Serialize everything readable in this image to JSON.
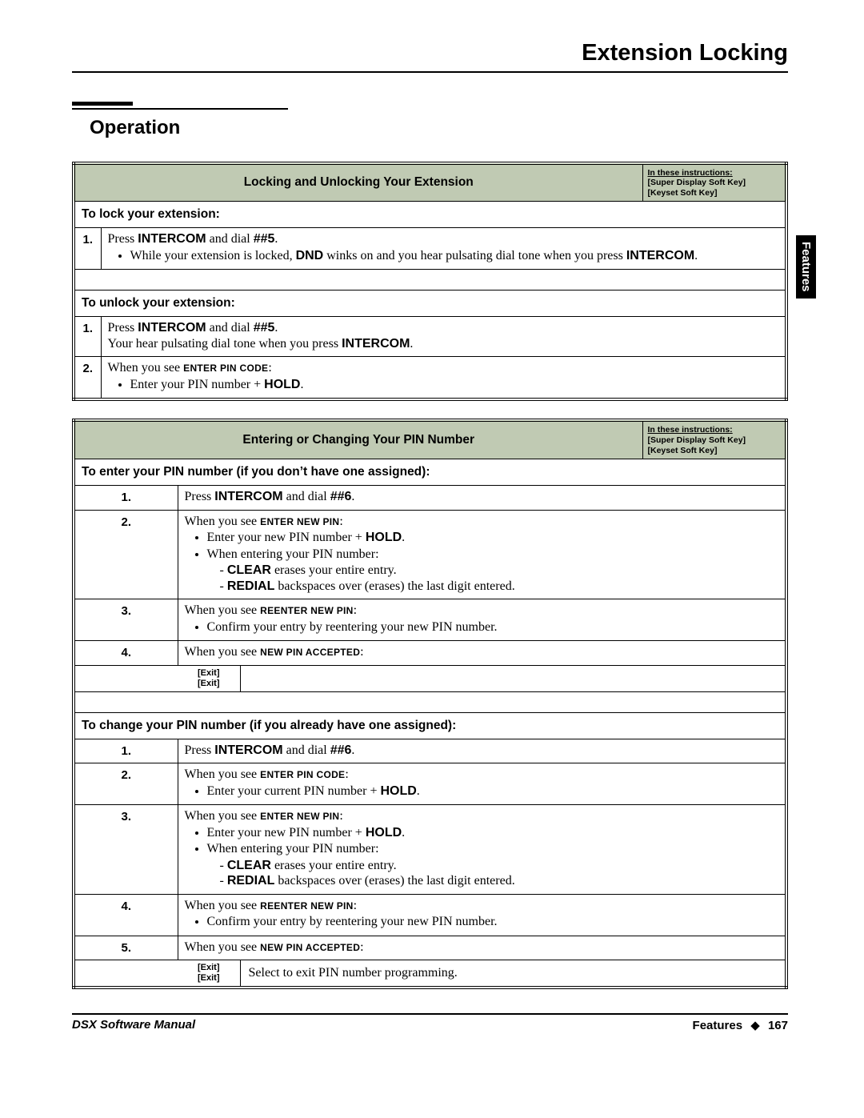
{
  "page_title": "Extension Locking",
  "section_heading": "Operation",
  "side_tab": "Features",
  "colors": {
    "header_bg": "#c0cab3",
    "rule": "#000000",
    "text": "#000000"
  },
  "legend": {
    "line1": "In these instructions:",
    "line2": "[Super Display Soft Key]",
    "line3": "[Keyset Soft Key]"
  },
  "tables": [
    {
      "title": "Locking and Unlocking Your Extension",
      "blocks": [
        {
          "subhead": "To lock your extension:",
          "rows": [
            {
              "num": "1.",
              "lines": [
                {
                  "type": "line",
                  "segments": [
                    {
                      "t": "Press ",
                      "cls": "serif"
                    },
                    {
                      "t": "INTERCOM",
                      "cls": "sans-b"
                    },
                    {
                      "t": " and dial ",
                      "cls": "serif"
                    },
                    {
                      "t": "##5",
                      "cls": "sans-b"
                    },
                    {
                      "t": ".",
                      "cls": "serif"
                    }
                  ]
                },
                {
                  "type": "bullet",
                  "segments": [
                    {
                      "t": "While your extension is locked, ",
                      "cls": "serif"
                    },
                    {
                      "t": "DND",
                      "cls": "sans-b"
                    },
                    {
                      "t": " winks on and you hear pulsating dial tone when you press ",
                      "cls": "serif"
                    },
                    {
                      "t": "INTERCOM",
                      "cls": "sans-b"
                    },
                    {
                      "t": ".",
                      "cls": "serif"
                    }
                  ]
                }
              ]
            }
          ],
          "spacer_after": true
        },
        {
          "subhead": "To unlock your extension:",
          "rows": [
            {
              "num": "1.",
              "lines": [
                {
                  "type": "line",
                  "segments": [
                    {
                      "t": "Press ",
                      "cls": "serif"
                    },
                    {
                      "t": "INTERCOM",
                      "cls": "sans-b"
                    },
                    {
                      "t": " and dial ",
                      "cls": "serif"
                    },
                    {
                      "t": "##5",
                      "cls": "sans-b"
                    },
                    {
                      "t": ".",
                      "cls": "serif"
                    }
                  ]
                },
                {
                  "type": "line",
                  "segments": [
                    {
                      "t": "Your hear pulsating dial tone when you press ",
                      "cls": "serif"
                    },
                    {
                      "t": "INTERCOM",
                      "cls": "sans-b"
                    },
                    {
                      "t": ".",
                      "cls": "serif"
                    }
                  ]
                }
              ]
            },
            {
              "num": "2.",
              "lines": [
                {
                  "type": "line",
                  "segments": [
                    {
                      "t": "When you see ",
                      "cls": "serif"
                    },
                    {
                      "t": "ENTER PIN CODE",
                      "cls": "scaps"
                    },
                    {
                      "t": ":",
                      "cls": "serif"
                    }
                  ]
                },
                {
                  "type": "bullet",
                  "segments": [
                    {
                      "t": "Enter your PIN number + ",
                      "cls": "serif"
                    },
                    {
                      "t": "HOLD",
                      "cls": "sans-b"
                    },
                    {
                      "t": ".",
                      "cls": "serif"
                    }
                  ]
                }
              ]
            }
          ]
        }
      ]
    },
    {
      "title": "Entering or Changing Your PIN Number",
      "blocks": [
        {
          "subhead": "To enter your PIN number (if you don’t have one assigned):",
          "rows": [
            {
              "num": "1.",
              "lines": [
                {
                  "type": "line",
                  "segments": [
                    {
                      "t": "Press ",
                      "cls": "serif"
                    },
                    {
                      "t": "INTERCOM",
                      "cls": "sans-b"
                    },
                    {
                      "t": " and dial ",
                      "cls": "serif"
                    },
                    {
                      "t": "##6",
                      "cls": "sans-b"
                    },
                    {
                      "t": ".",
                      "cls": "serif"
                    }
                  ]
                }
              ]
            },
            {
              "num": "2.",
              "lines": [
                {
                  "type": "line",
                  "segments": [
                    {
                      "t": "When you see ",
                      "cls": "serif"
                    },
                    {
                      "t": "ENTER NEW PIN",
                      "cls": "scaps"
                    },
                    {
                      "t": ":",
                      "cls": "serif"
                    }
                  ]
                },
                {
                  "type": "bullet",
                  "segments": [
                    {
                      "t": "Enter your new PIN number + ",
                      "cls": "serif"
                    },
                    {
                      "t": "HOLD",
                      "cls": "sans-b"
                    },
                    {
                      "t": ".",
                      "cls": "serif"
                    }
                  ]
                },
                {
                  "type": "bullet",
                  "segments": [
                    {
                      "t": "When entering your PIN number:",
                      "cls": "serif"
                    }
                  ]
                },
                {
                  "type": "dash",
                  "segments": [
                    {
                      "t": "CLEAR",
                      "cls": "sans-b"
                    },
                    {
                      "t": " erases your entire entry.",
                      "cls": "serif"
                    }
                  ]
                },
                {
                  "type": "dash",
                  "segments": [
                    {
                      "t": "REDIAL",
                      "cls": "sans-b"
                    },
                    {
                      "t": " backspaces over (erases) the last digit entered.",
                      "cls": "serif"
                    }
                  ]
                }
              ]
            },
            {
              "num": "3.",
              "lines": [
                {
                  "type": "line",
                  "segments": [
                    {
                      "t": "When you see ",
                      "cls": "serif"
                    },
                    {
                      "t": "REENTER NEW PIN",
                      "cls": "scaps"
                    },
                    {
                      "t": ":",
                      "cls": "serif"
                    }
                  ]
                },
                {
                  "type": "bullet",
                  "segments": [
                    {
                      "t": "Confirm your entry by reentering your new PIN number.",
                      "cls": "serif"
                    }
                  ]
                }
              ]
            },
            {
              "num": "4.",
              "lines": [
                {
                  "type": "line",
                  "segments": [
                    {
                      "t": "When you see ",
                      "cls": "serif"
                    },
                    {
                      "t": "NEW PIN ACCEPTED",
                      "cls": "scaps"
                    },
                    {
                      "t": ":",
                      "cls": "serif"
                    }
                  ]
                }
              ]
            },
            {
              "num": "",
              "softkey": {
                "l1": "[Exit]",
                "l2": "[Exit]"
              },
              "after_text": ""
            }
          ],
          "spacer_after": true
        },
        {
          "subhead": "To change your PIN number (if you already have one assigned):",
          "rows": [
            {
              "num": "1.",
              "lines": [
                {
                  "type": "line",
                  "segments": [
                    {
                      "t": "Press ",
                      "cls": "serif"
                    },
                    {
                      "t": "INTERCOM",
                      "cls": "sans-b"
                    },
                    {
                      "t": " and dial ",
                      "cls": "serif"
                    },
                    {
                      "t": "##6",
                      "cls": "sans-b"
                    },
                    {
                      "t": ".",
                      "cls": "serif"
                    }
                  ]
                }
              ]
            },
            {
              "num": "2.",
              "lines": [
                {
                  "type": "line",
                  "segments": [
                    {
                      "t": "When you see ",
                      "cls": "serif"
                    },
                    {
                      "t": "ENTER PIN CODE",
                      "cls": "scaps"
                    },
                    {
                      "t": ":",
                      "cls": "serif"
                    }
                  ]
                },
                {
                  "type": "bullet",
                  "segments": [
                    {
                      "t": "Enter your current PIN number + ",
                      "cls": "serif"
                    },
                    {
                      "t": "HOLD",
                      "cls": "sans-b"
                    },
                    {
                      "t": ".",
                      "cls": "serif"
                    }
                  ]
                }
              ]
            },
            {
              "num": "3.",
              "lines": [
                {
                  "type": "line",
                  "segments": [
                    {
                      "t": "When you see ",
                      "cls": "serif"
                    },
                    {
                      "t": "ENTER NEW PIN",
                      "cls": "scaps"
                    },
                    {
                      "t": ":",
                      "cls": "serif"
                    }
                  ]
                },
                {
                  "type": "bullet",
                  "segments": [
                    {
                      "t": "Enter your new PIN number + ",
                      "cls": "serif"
                    },
                    {
                      "t": "HOLD",
                      "cls": "sans-b"
                    },
                    {
                      "t": ".",
                      "cls": "serif"
                    }
                  ]
                },
                {
                  "type": "bullet",
                  "segments": [
                    {
                      "t": "When entering your PIN number:",
                      "cls": "serif"
                    }
                  ]
                },
                {
                  "type": "dash",
                  "segments": [
                    {
                      "t": "CLEAR",
                      "cls": "sans-b"
                    },
                    {
                      "t": " erases your entire entry.",
                      "cls": "serif"
                    }
                  ]
                },
                {
                  "type": "dash",
                  "segments": [
                    {
                      "t": "REDIAL",
                      "cls": "sans-b"
                    },
                    {
                      "t": " backspaces over (erases) the last digit entered.",
                      "cls": "serif"
                    }
                  ]
                }
              ]
            },
            {
              "num": "4.",
              "lines": [
                {
                  "type": "line",
                  "segments": [
                    {
                      "t": "When you see ",
                      "cls": "serif"
                    },
                    {
                      "t": "REENTER NEW PIN",
                      "cls": "scaps"
                    },
                    {
                      "t": ":",
                      "cls": "serif"
                    }
                  ]
                },
                {
                  "type": "bullet",
                  "segments": [
                    {
                      "t": "Confirm your entry by reentering your new PIN number.",
                      "cls": "serif"
                    }
                  ]
                }
              ]
            },
            {
              "num": "5.",
              "lines": [
                {
                  "type": "line",
                  "segments": [
                    {
                      "t": "When you see ",
                      "cls": "serif"
                    },
                    {
                      "t": "NEW PIN ACCEPTED",
                      "cls": "scaps"
                    },
                    {
                      "t": ":",
                      "cls": "serif"
                    }
                  ]
                }
              ]
            },
            {
              "num": "",
              "softkey": {
                "l1": "[Exit]",
                "l2": "[Exit]"
              },
              "after_text": "Select to exit PIN number programming."
            }
          ]
        }
      ]
    }
  ],
  "footer": {
    "left": "DSX Software Manual",
    "right_label": "Features",
    "page_num": "167"
  }
}
